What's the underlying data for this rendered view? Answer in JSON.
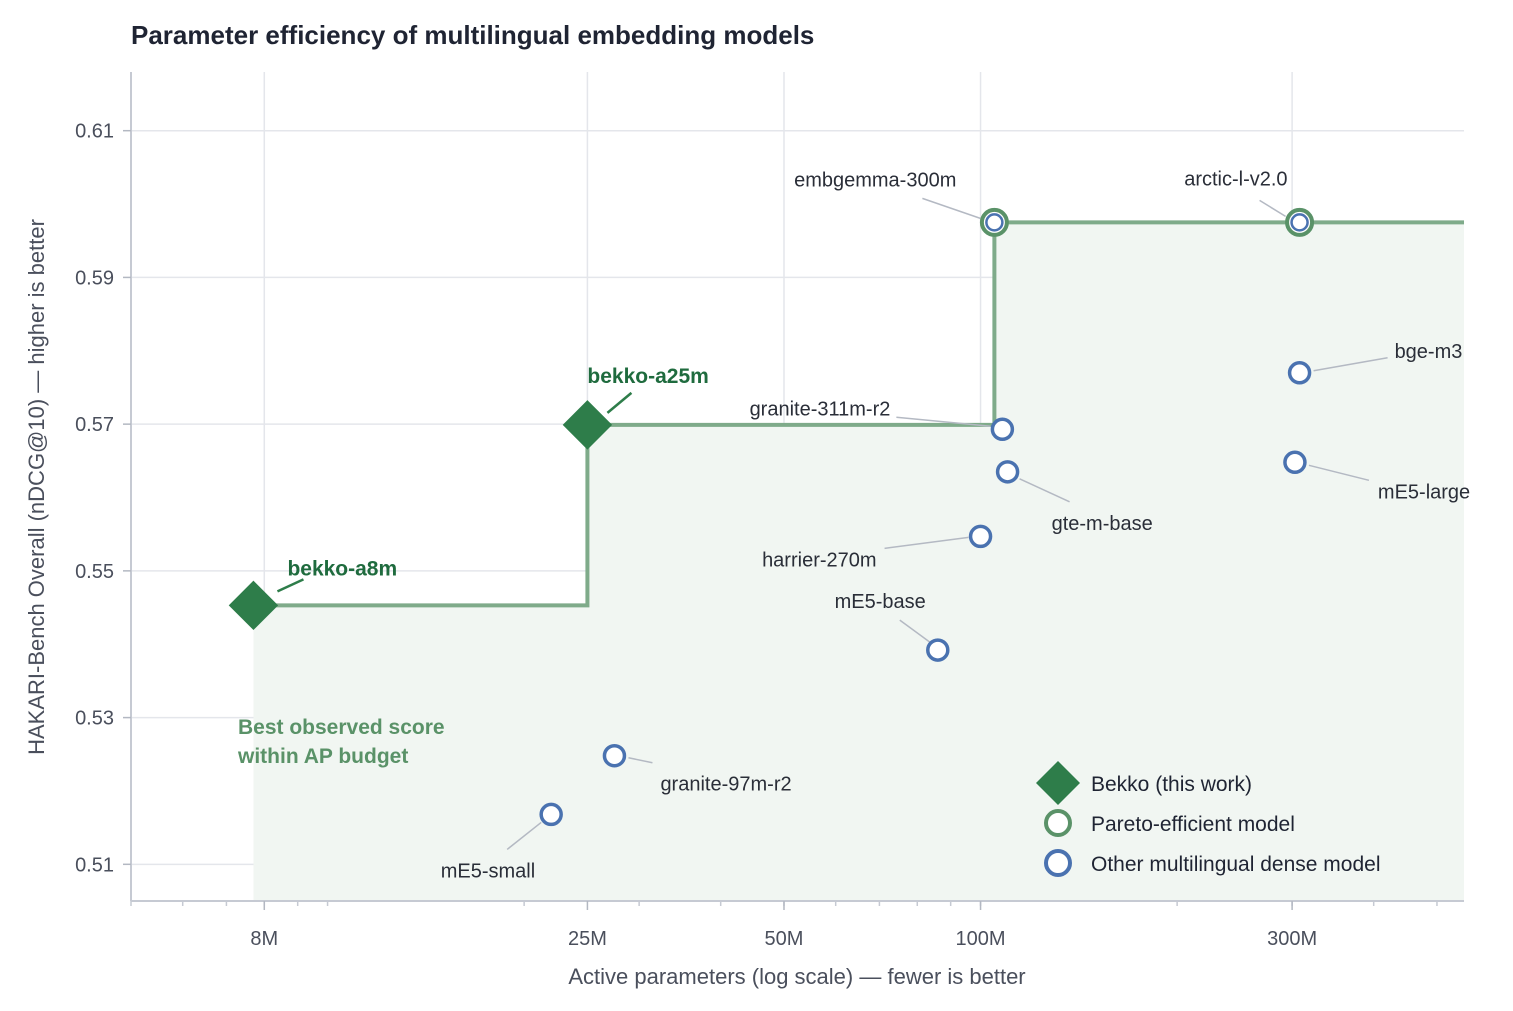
{
  "chart_data": {
    "type": "scatter",
    "title": "Parameter efficiency of multilingual embedding models",
    "xlabel": "Active parameters (log scale) — fewer is better",
    "ylabel": "HAKARI-Bench Overall (nDCG@10) — higher is better",
    "x_scale": "log",
    "xlim": [
      5000000,
      550000000
    ],
    "ylim": [
      0.505,
      0.618
    ],
    "x_ticks": [
      {
        "value": 8000000,
        "label": "8M"
      },
      {
        "value": 25000000,
        "label": "25M"
      },
      {
        "value": 50000000,
        "label": "50M"
      },
      {
        "value": 100000000,
        "label": "100M"
      },
      {
        "value": 300000000,
        "label": "300M"
      }
    ],
    "y_ticks": [
      {
        "value": 0.51,
        "label": "0.51"
      },
      {
        "value": 0.53,
        "label": "0.53"
      },
      {
        "value": 0.55,
        "label": "0.55"
      },
      {
        "value": 0.57,
        "label": "0.57"
      },
      {
        "value": 0.59,
        "label": "0.59"
      },
      {
        "value": 0.61,
        "label": "0.61"
      }
    ],
    "grid": true,
    "series": [
      {
        "name": "Bekko (this work)",
        "marker": "diamond",
        "color": "#2e7d4a",
        "points": [
          {
            "label": "bekko-a8m",
            "x": 7700000,
            "y": 0.5453
          },
          {
            "label": "bekko-a25m",
            "x": 25000000,
            "y": 0.5699
          }
        ]
      },
      {
        "name": "Pareto-efficient model",
        "marker": "open-circle",
        "color": "#5a9268",
        "points": [
          {
            "label": "embgemma-300m",
            "x": 105000000,
            "y": 0.5975
          },
          {
            "label": "arctic-l-v2.0",
            "x": 308000000,
            "y": 0.5975
          }
        ]
      },
      {
        "name": "Other multilingual dense model",
        "marker": "open-circle",
        "color": "#4a72b0",
        "points": [
          {
            "label": "bge-m3",
            "x": 308000000,
            "y": 0.577
          },
          {
            "label": "granite-311m-r2",
            "x": 108000000,
            "y": 0.5693
          },
          {
            "label": "gte-m-base",
            "x": 110000000,
            "y": 0.5635
          },
          {
            "label": "mE5-large",
            "x": 303000000,
            "y": 0.5648
          },
          {
            "label": "harrier-270m",
            "x": 100000000,
            "y": 0.5547
          },
          {
            "label": "mE5-base",
            "x": 86000000,
            "y": 0.5392
          },
          {
            "label": "granite-97m-r2",
            "x": 27500000,
            "y": 0.5248
          },
          {
            "label": "mE5-small",
            "x": 22000000,
            "y": 0.5168
          }
        ]
      }
    ],
    "frontier": [
      [
        7700000,
        0.5453
      ],
      [
        25000000,
        0.5453
      ],
      [
        25000000,
        0.5699
      ],
      [
        105000000,
        0.5699
      ],
      [
        105000000,
        0.5975
      ],
      [
        550000000,
        0.5975
      ]
    ],
    "annotation": "Best observed score within AP budget",
    "legend_position": "bottom-right",
    "colors": {
      "bekko": "#2e7d4a",
      "pareto": "#5a9268",
      "other": "#4a72b0",
      "frontier": "#7fab8a",
      "fill": "#f1f6f2"
    }
  }
}
